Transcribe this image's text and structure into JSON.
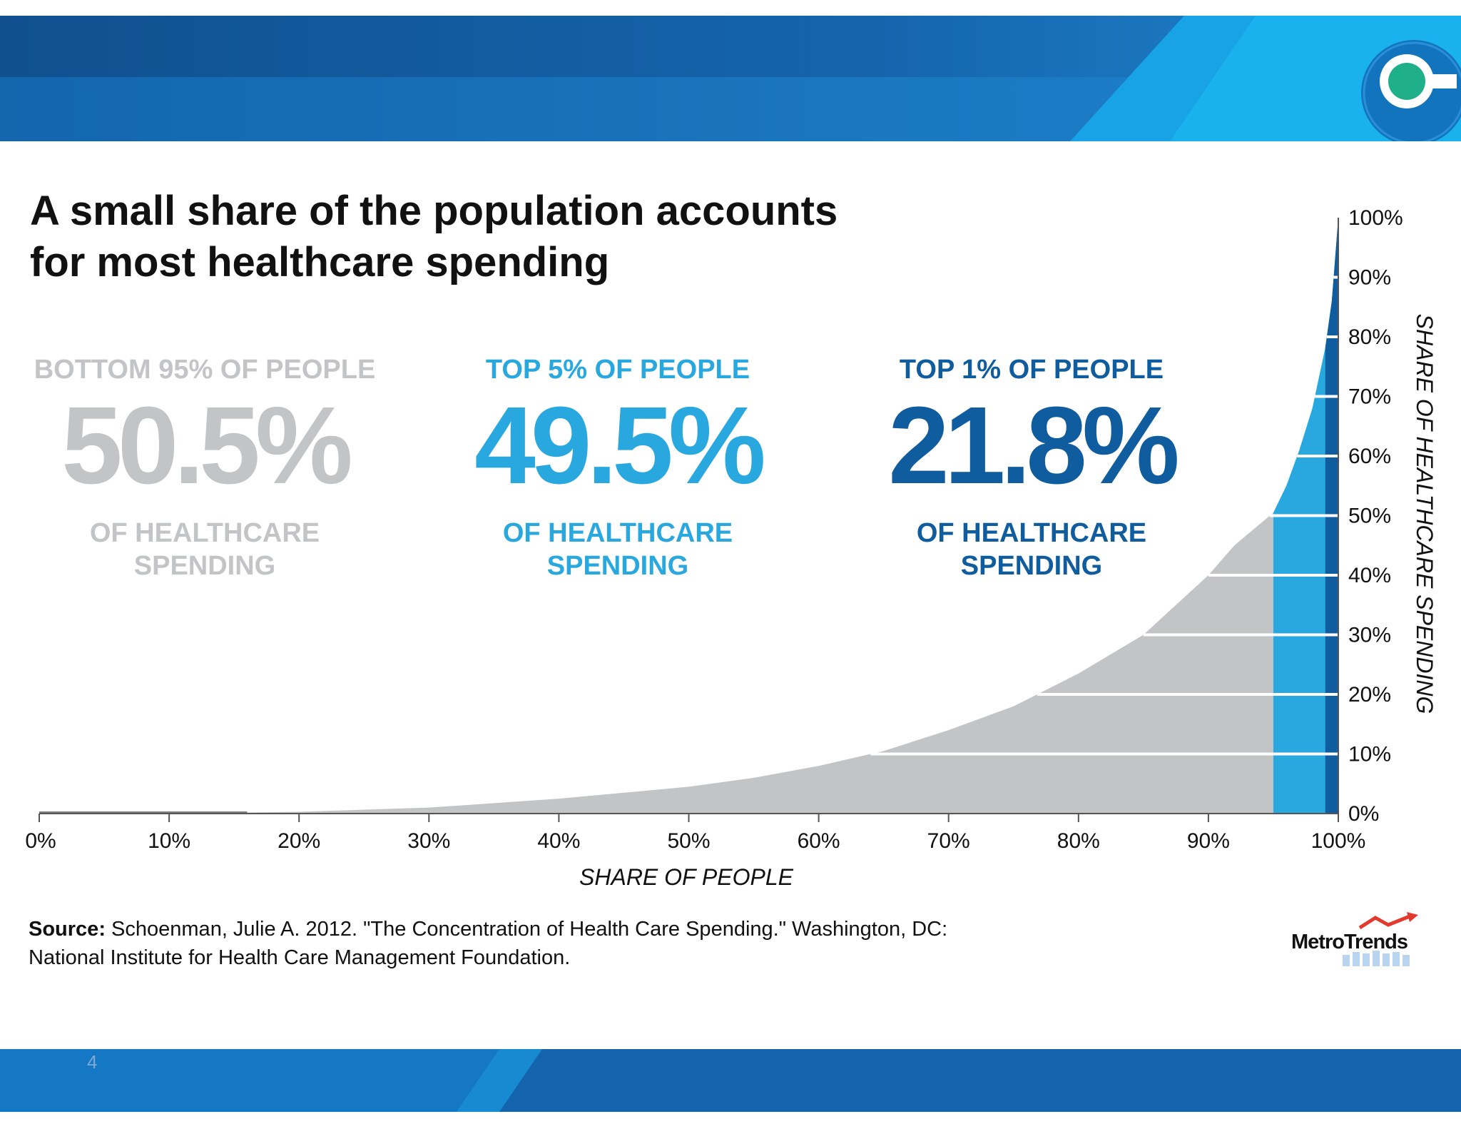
{
  "title": {
    "line1": "A small share of the population accounts",
    "line2": "for most healthcare spending"
  },
  "stats": [
    {
      "label": "BOTTOM 95% OF PEOPLE",
      "value": "50.5%",
      "caption_line1": "OF HEALTHCARE",
      "caption_line2": "SPENDING",
      "color": "#c3c4c6"
    },
    {
      "label": "TOP 5% OF PEOPLE",
      "value": "49.5%",
      "caption_line1": "OF HEALTHCARE",
      "caption_line2": "SPENDING",
      "color": "#29a8e0"
    },
    {
      "label": "TOP 1% OF PEOPLE",
      "value": "21.8%",
      "caption_line1": "OF HEALTHCARE",
      "caption_line2": "SPENDING",
      "color": "#0f5c9e"
    }
  ],
  "chart_data": {
    "type": "area",
    "title": "A small share of the population accounts for most healthcare spending",
    "xlabel": "SHARE OF PEOPLE",
    "ylabel": "SHARE OF HEALTHCARE SPENDING",
    "xlim": [
      0,
      100
    ],
    "ylim": [
      0,
      100
    ],
    "x_ticks": [
      "0%",
      "10%",
      "20%",
      "30%",
      "40%",
      "50%",
      "60%",
      "70%",
      "80%",
      "90%",
      "100%"
    ],
    "y_ticks": [
      "0%",
      "10%",
      "20%",
      "30%",
      "40%",
      "50%",
      "60%",
      "70%",
      "80%",
      "90%",
      "100%"
    ],
    "grid": "horizontal",
    "x": [
      0,
      10,
      20,
      30,
      40,
      50,
      55,
      60,
      65,
      70,
      75,
      80,
      85,
      90,
      92,
      95,
      96,
      97,
      98,
      99,
      99.5,
      100
    ],
    "y": [
      0,
      0,
      0.3,
      1.0,
      2.5,
      4.5,
      6.0,
      8.0,
      10.5,
      14.0,
      18.0,
      23.5,
      30.0,
      40.0,
      45.0,
      50.5,
      55.0,
      61.0,
      68.0,
      78.2,
      86.0,
      100.0
    ],
    "segments": [
      {
        "name": "Bottom 95% of people",
        "x_range": [
          0,
          95
        ],
        "share_of_spending": 50.5,
        "color": "#c3c4c6"
      },
      {
        "name": "Top 5% of people",
        "x_range": [
          95,
          100
        ],
        "share_of_spending": 49.5,
        "color": "#29a8e0"
      },
      {
        "name": "Top 1% of people",
        "x_range": [
          99,
          100
        ],
        "share_of_spending": 21.8,
        "color": "#0f5c9e"
      }
    ]
  },
  "source": {
    "label": "Source:",
    "line1": "Schoenman, Julie A. 2012. \"The Concentration of Health Care Spending.\" Washington, DC:",
    "line2": "National Institute for Health Care Management Foundation."
  },
  "logo": {
    "name": "MetroTrends"
  },
  "page_number": "4",
  "colors": {
    "dark_blue": "#0f5c9e",
    "light_blue": "#29a8e0",
    "gray": "#c3c4c6",
    "header_blue": "#1a6fb6"
  }
}
